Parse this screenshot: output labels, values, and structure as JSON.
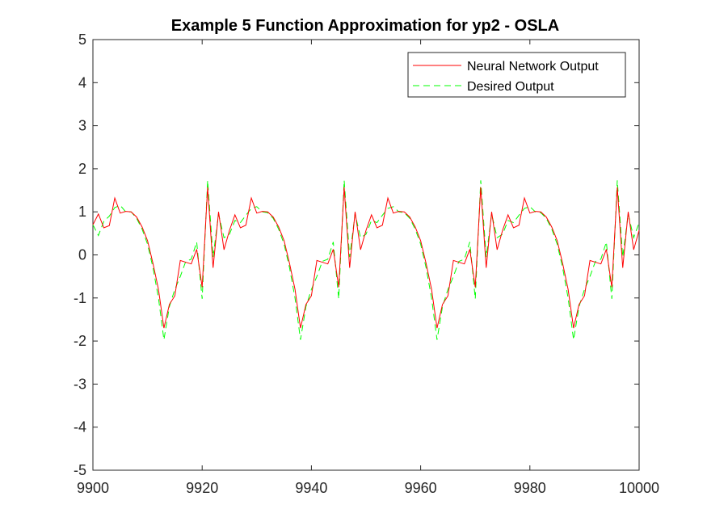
{
  "chart_data": {
    "type": "line",
    "title": "Example 5 Function Approximation for yp2 - OSLA",
    "xlabel": "",
    "ylabel": "",
    "xlim": [
      9900,
      10000
    ],
    "ylim": [
      -5,
      5
    ],
    "xticks": [
      "9900",
      "9920",
      "9940",
      "9960",
      "9980",
      "10000"
    ],
    "yticks": [
      "5",
      "4",
      "3",
      "2",
      "1",
      "0",
      "-1",
      "-2",
      "-3",
      "-4",
      "-5"
    ],
    "grid": false,
    "legend_position": "top-right",
    "x": [
      9900,
      9901,
      9902,
      9903,
      9904,
      9905,
      9906,
      9907,
      9908,
      9909,
      9910,
      9911,
      9912,
      9913,
      9914,
      9915,
      9916,
      9917,
      9918,
      9919,
      9920,
      9921,
      9922,
      9923,
      9924,
      9925,
      9926,
      9927,
      9928,
      9929,
      9930,
      9931,
      9932,
      9933,
      9934,
      9935,
      9936,
      9937,
      9938,
      9939,
      9940,
      9941,
      9942,
      9943,
      9944,
      9945,
      9946,
      9947,
      9948,
      9949,
      9950,
      9951,
      9952,
      9953,
      9954,
      9955,
      9956,
      9957,
      9958,
      9959,
      9960,
      9961,
      9962,
      9963,
      9964,
      9965,
      9966,
      9967,
      9968,
      9969,
      9970,
      9971,
      9972,
      9973,
      9974,
      9975,
      9976,
      9977,
      9978,
      9979,
      9980,
      9981,
      9982,
      9983,
      9984,
      9985,
      9986,
      9987,
      9988,
      9989,
      9990,
      9991,
      9992,
      9993,
      9994,
      9995,
      9996,
      9997,
      9998,
      9999,
      10000
    ],
    "series": [
      {
        "name": "Neural Network Output",
        "color": "#ff0000",
        "dash": "solid",
        "values": [
          0.7,
          0.95,
          0.63,
          0.68,
          1.32,
          0.97,
          1.01,
          1.0,
          0.88,
          0.65,
          0.33,
          -0.2,
          -0.8,
          -1.7,
          -1.15,
          -0.95,
          -0.13,
          -0.17,
          -0.21,
          0.13,
          -0.75,
          1.57,
          -0.3,
          1.0,
          0.12,
          0.57,
          0.93,
          0.63,
          0.69,
          1.32,
          0.97,
          1.01,
          1.0,
          0.88,
          0.65,
          0.33,
          -0.2,
          -0.8,
          -1.7,
          -1.15,
          -0.95,
          -0.13,
          -0.17,
          -0.21,
          0.13,
          -0.75,
          1.57,
          -0.3,
          1.0,
          0.12,
          0.57,
          0.93,
          0.63,
          0.69,
          1.32,
          0.97,
          1.01,
          1.0,
          0.88,
          0.65,
          0.33,
          -0.2,
          -0.8,
          -1.7,
          -1.15,
          -0.95,
          -0.13,
          -0.17,
          -0.21,
          0.13,
          -0.75,
          1.57,
          -0.3,
          1.0,
          0.12,
          0.57,
          0.93,
          0.63,
          0.69,
          1.32,
          0.97,
          1.01,
          1.0,
          0.88,
          0.65,
          0.33,
          -0.2,
          -0.8,
          -1.7,
          -1.15,
          -0.95,
          -0.13,
          -0.17,
          -0.21,
          0.13,
          -0.75,
          1.57,
          -0.3,
          1.0,
          0.12,
          0.57
        ]
      },
      {
        "name": "Desired Output",
        "color": "#00ff00",
        "dash": "dashed",
        "values": [
          0.7,
          0.45,
          0.78,
          0.9,
          1.1,
          1.15,
          1.0,
          1.0,
          0.85,
          0.6,
          0.25,
          -0.3,
          -1.0,
          -1.97,
          -1.2,
          -0.8,
          -0.5,
          -0.15,
          -0.1,
          0.3,
          -1.02,
          1.73,
          -0.05,
          0.95,
          0.4,
          0.48,
          0.8,
          0.75,
          0.92,
          1.08,
          1.12,
          1.0,
          0.98,
          0.85,
          0.6,
          0.25,
          -0.3,
          -1.0,
          -1.97,
          -1.2,
          -0.8,
          -0.5,
          -0.15,
          -0.1,
          0.3,
          -1.02,
          1.73,
          -0.05,
          0.95,
          0.4,
          0.48,
          0.8,
          0.75,
          0.92,
          1.08,
          1.12,
          1.0,
          0.98,
          0.85,
          0.6,
          0.25,
          -0.3,
          -1.0,
          -1.97,
          -1.2,
          -0.8,
          -0.5,
          -0.15,
          -0.1,
          0.3,
          -1.02,
          1.73,
          -0.05,
          0.95,
          0.4,
          0.48,
          0.8,
          0.75,
          0.92,
          1.08,
          1.12,
          1.0,
          0.98,
          0.85,
          0.6,
          0.25,
          -0.3,
          -1.0,
          -1.97,
          -1.2,
          -0.8,
          -0.5,
          -0.15,
          -0.1,
          0.3,
          -1.02,
          1.73,
          -0.05,
          0.95,
          0.4,
          0.75
        ]
      }
    ]
  }
}
